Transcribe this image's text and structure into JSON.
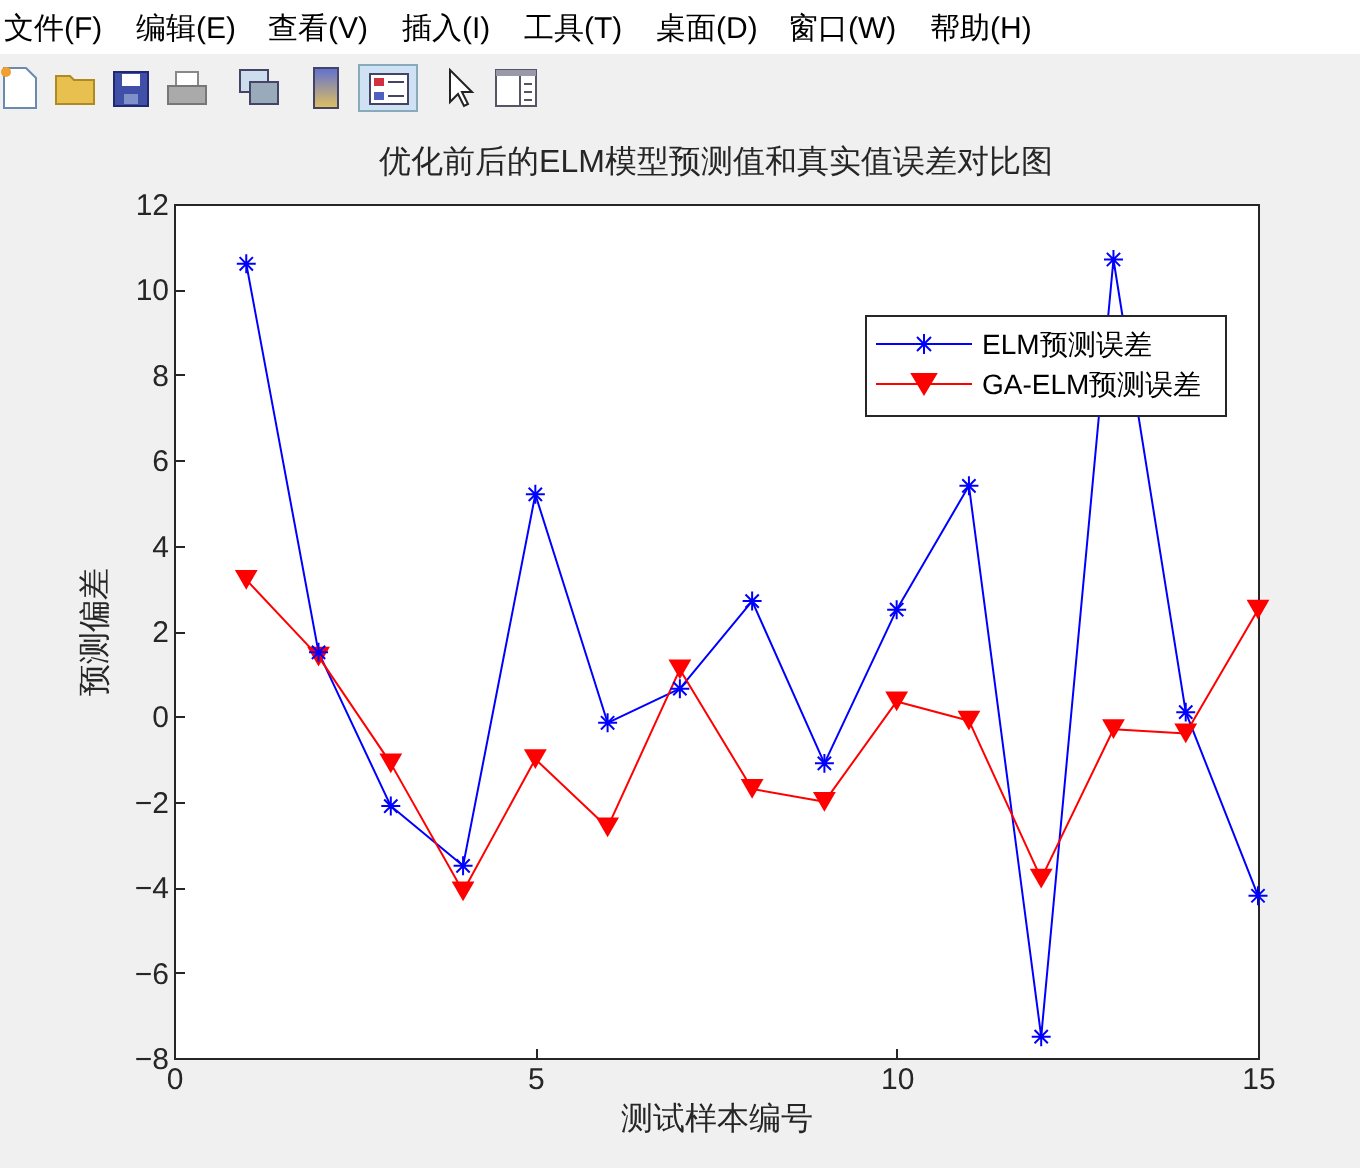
{
  "chart_data": {
    "type": "line",
    "title": "优化前后的ELM模型预测值和真实值误差对比图",
    "xlabel": "测试样本编号",
    "ylabel": "预测偏差",
    "annotations": [
      "文件(F)",
      "编辑(E)",
      "查看(V)",
      "插入(I)",
      "工具(T)",
      "桌面(D)",
      "窗口(W)",
      "帮助(H)"
    ],
    "x": [
      1,
      2,
      3,
      4,
      5,
      6,
      7,
      8,
      9,
      10,
      11,
      12,
      13,
      14,
      15
    ],
    "series": [
      {
        "name": "ELM预测误差",
        "color": "#0000ff",
        "marker": "cross",
        "values": [
          10.6,
          1.5,
          -2.1,
          -3.5,
          5.2,
          -0.15,
          0.65,
          2.7,
          -1.1,
          2.5,
          5.4,
          -7.5,
          10.7,
          0.1,
          -4.2
        ]
      },
      {
        "name": "GA-ELM预测误差",
        "color": "#ff0000",
        "marker": "triangle",
        "values": [
          3.2,
          1.4,
          -1.1,
          -4.1,
          -1.0,
          -2.6,
          1.1,
          -1.7,
          -2.0,
          0.35,
          -0.1,
          -3.8,
          -0.3,
          -0.4,
          2.5
        ]
      }
    ],
    "xlim": [
      0,
      15
    ],
    "xticks": [
      0,
      5,
      10,
      15
    ],
    "ylim": [
      -8,
      12
    ],
    "yticks": [
      -8,
      -6,
      -4,
      -2,
      0,
      2,
      4,
      6,
      8,
      10,
      12
    ],
    "legend": "top right",
    "grid": false,
    "line_style": "solid"
  }
}
